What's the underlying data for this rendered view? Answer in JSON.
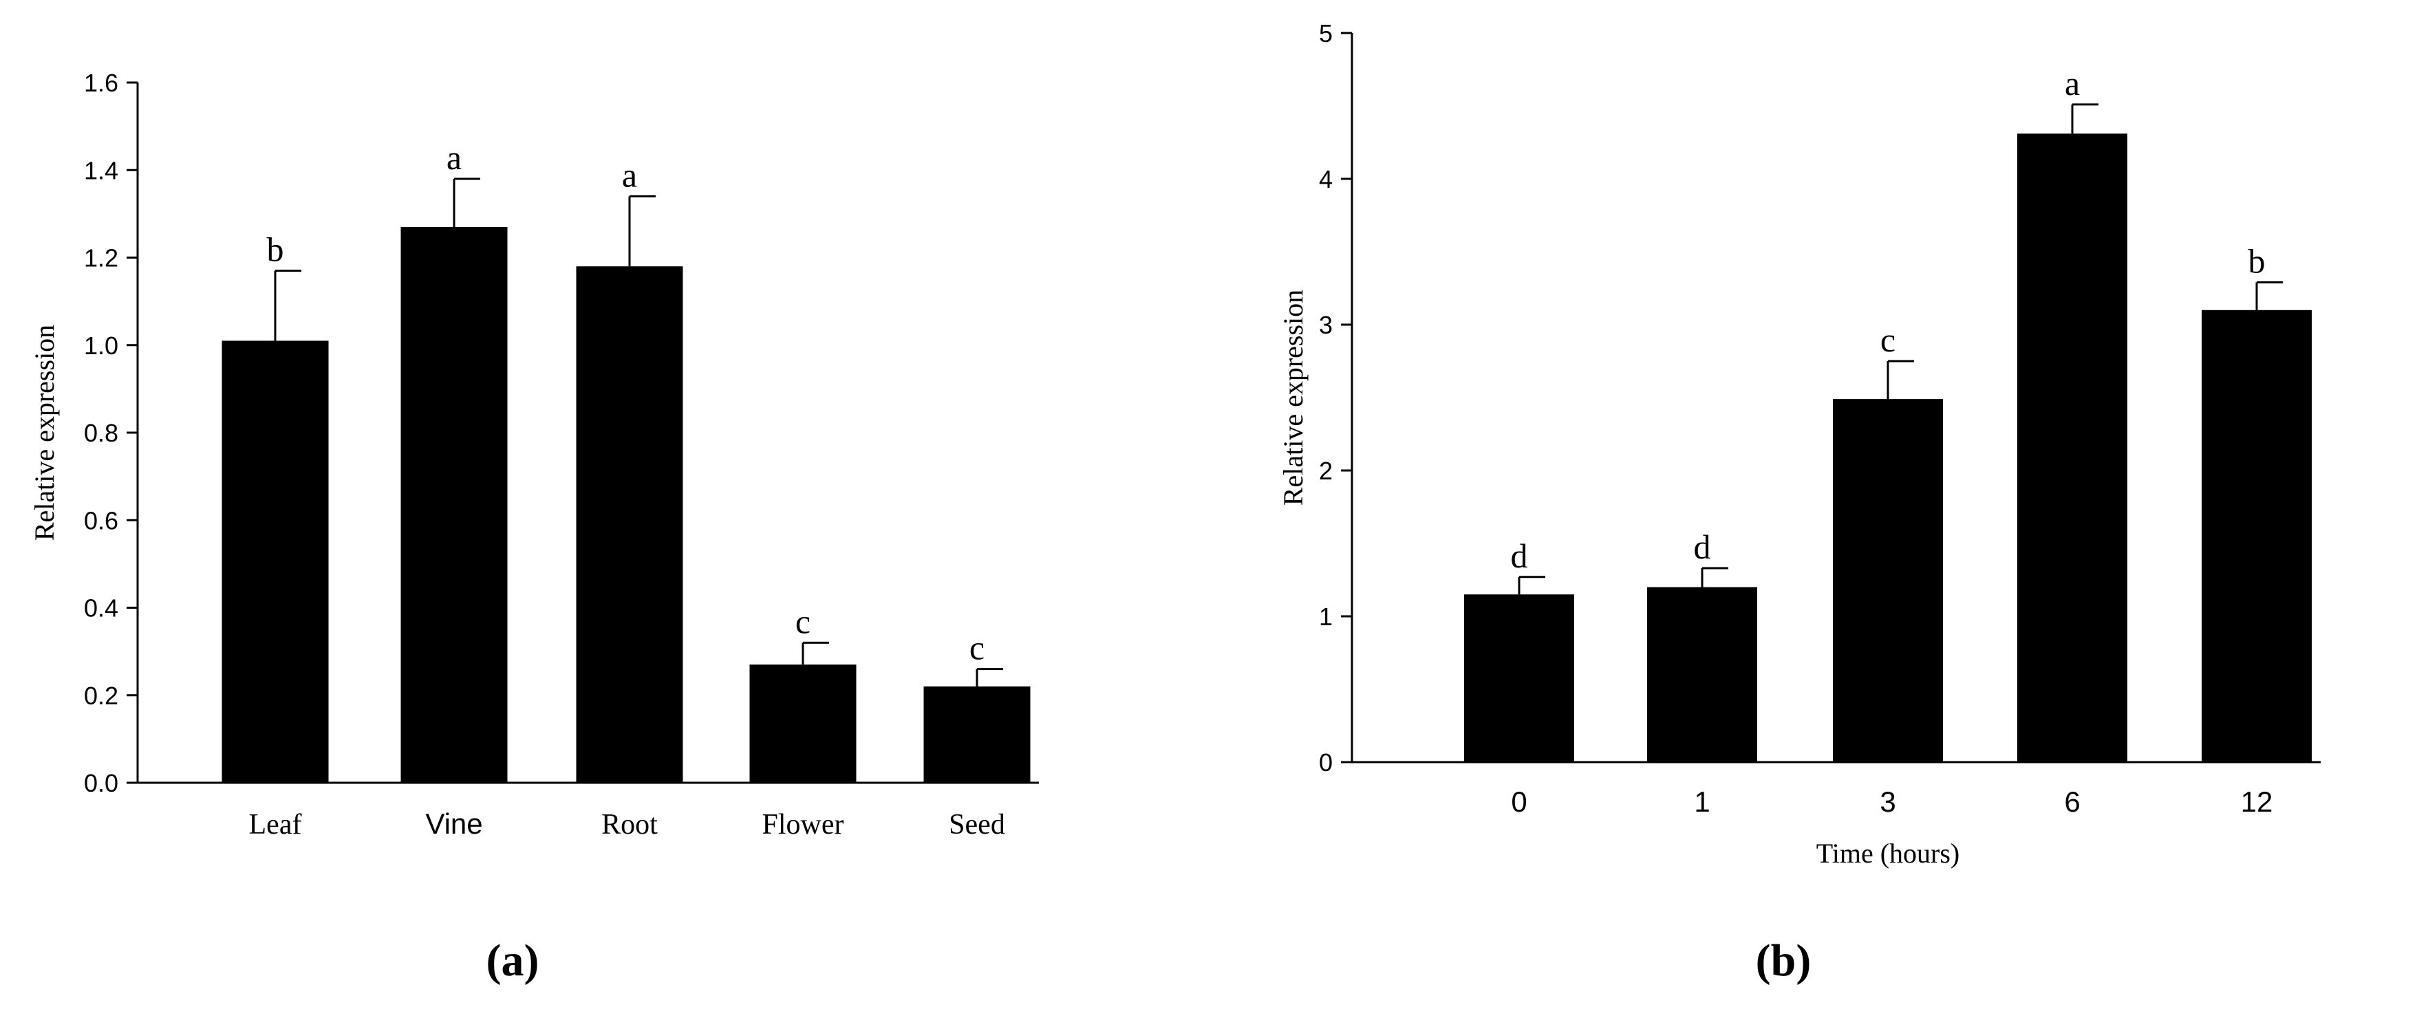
{
  "chart_data": [
    {
      "type": "bar",
      "panel_label": "(a)",
      "categories": [
        "Leaf",
        "Vine",
        "Root",
        "Flower",
        "Seed"
      ],
      "values": [
        1.01,
        1.27,
        1.18,
        0.27,
        0.22
      ],
      "errors": [
        0.16,
        0.11,
        0.16,
        0.05,
        0.04
      ],
      "significance": [
        "b",
        "a",
        "a",
        "c",
        "c"
      ],
      "xlabel": "",
      "ylabel": "Relative expression",
      "ylim": [
        0,
        1.6
      ],
      "yticks": [
        "0.0",
        "0.2",
        "0.4",
        "0.6",
        "0.8",
        "1.0",
        "1.2",
        "1.4",
        "1.6"
      ],
      "bar_color": "#000000",
      "grid": false
    },
    {
      "type": "bar",
      "panel_label": "(b)",
      "categories": [
        "0",
        "1",
        "3",
        "6",
        "12"
      ],
      "values": [
        1.15,
        1.2,
        2.49,
        4.31,
        3.1
      ],
      "errors": [
        0.12,
        0.13,
        0.26,
        0.2,
        0.19
      ],
      "significance": [
        "d",
        "d",
        "c",
        "a",
        "b"
      ],
      "xlabel": "Time (hours)",
      "ylabel": "Relative expression",
      "ylim": [
        0,
        5
      ],
      "yticks": [
        "0",
        "1",
        "2",
        "3",
        "4",
        "5"
      ],
      "bar_color": "#000000",
      "grid": false
    }
  ]
}
